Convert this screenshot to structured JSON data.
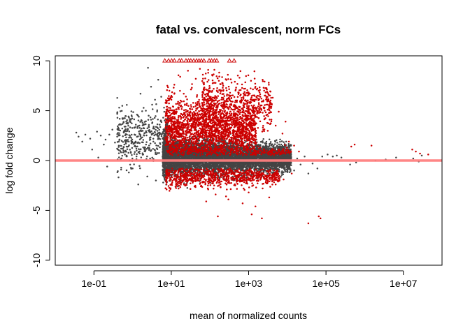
{
  "chart_data": {
    "type": "scatter",
    "title": "fatal vs. convalescent, norm FCs",
    "xlabel": "mean of normalized counts",
    "ylabel": "log fold change",
    "x_scale": "log10",
    "xlim": [
      0.01,
      100000000
    ],
    "ylim": [
      -10.5,
      10.5
    ],
    "x_ticks": [
      0.1,
      10,
      1000,
      100000,
      10000000
    ],
    "x_tick_labels": [
      "1e-01",
      "1e+01",
      "1e+03",
      "1e+05",
      "1e+07"
    ],
    "y_ticks": [
      -10,
      -5,
      0,
      5,
      10
    ],
    "y_tick_labels": [
      "-10",
      "-5",
      "0",
      "5",
      "10"
    ],
    "grid": false,
    "reference_line": {
      "y": 0,
      "color": "#ff8080"
    },
    "colors": {
      "not_significant": "#444444",
      "significant": "#cc0000",
      "out_of_range": "#cc0000"
    },
    "series": [
      {
        "key": "not_significant",
        "points": [
          [
            0.035,
            2.8
          ],
          [
            0.04,
            2.4
          ],
          [
            0.05,
            1.9
          ],
          [
            0.06,
            2.6
          ],
          [
            0.08,
            2.2
          ],
          [
            0.09,
            1.1
          ],
          [
            0.12,
            2.9
          ],
          [
            0.13,
            0.3
          ],
          [
            0.15,
            2.5
          ],
          [
            0.18,
            1.6
          ],
          [
            0.2,
            2.1
          ],
          [
            0.22,
            -0.6
          ],
          [
            0.25,
            2.6
          ],
          [
            0.3,
            3.1
          ],
          [
            0.35,
            1.8
          ],
          [
            0.4,
            2.4
          ],
          [
            0.45,
            5.3
          ],
          [
            0.5,
            3.6
          ],
          [
            0.55,
            1.2
          ],
          [
            0.6,
            2.9
          ],
          [
            0.7,
            0.5
          ],
          [
            0.75,
            3.8
          ],
          [
            0.8,
            -1.2
          ],
          [
            0.85,
            2.5
          ],
          [
            0.9,
            4.1
          ],
          [
            1.0,
            -0.8
          ],
          [
            1.1,
            3.3
          ],
          [
            1.2,
            1.9
          ],
          [
            1.3,
            4.6
          ],
          [
            1.4,
            -2.4
          ],
          [
            1.5,
            2.7
          ],
          [
            1.6,
            6.7
          ],
          [
            1.8,
            3.8
          ],
          [
            2.0,
            1.2
          ],
          [
            2.2,
            5.0
          ],
          [
            2.4,
            -1.6
          ],
          [
            2.5,
            9.3
          ],
          [
            2.6,
            4.5
          ],
          [
            2.8,
            2.9
          ],
          [
            3.0,
            7.4
          ],
          [
            3.2,
            5.6
          ],
          [
            3.5,
            3.4
          ],
          [
            3.8,
            6.1
          ],
          [
            4.0,
            -2.0
          ],
          [
            4.3,
            4.9
          ],
          [
            4.6,
            8.1
          ],
          [
            5.0,
            3.6
          ],
          [
            5.5,
            6.4
          ],
          [
            6.0,
            1.8
          ],
          [
            6.5,
            5.3
          ],
          [
            7.0,
            -1.5
          ],
          [
            8.0,
            4.2
          ],
          [
            9.0,
            2.7
          ],
          [
            10.0,
            -0.9
          ],
          [
            12.0,
            1.3
          ],
          [
            14.0,
            0.6
          ],
          [
            1000,
            -0.4
          ],
          [
            2000,
            0.8
          ],
          [
            3000,
            -0.5
          ],
          [
            4500,
            0.3
          ],
          [
            6000,
            -0.9
          ],
          [
            8000,
            0.5
          ],
          [
            9500,
            -0.6
          ],
          [
            12000,
            0.6
          ],
          [
            15000,
            -1.0
          ],
          [
            18000,
            0.2
          ],
          [
            22000,
            -0.4
          ],
          [
            28000,
            0.4
          ],
          [
            35000,
            -1.3
          ],
          [
            45000,
            -0.3
          ],
          [
            60000,
            -0.8
          ],
          [
            80000,
            0.4
          ],
          [
            110000,
            0.6
          ],
          [
            150000,
            0.4
          ],
          [
            190000,
            0.5
          ],
          [
            250000,
            0.3
          ],
          [
            420000,
            -0.4
          ],
          [
            600000,
            -0.2
          ],
          [
            1900000,
            0.0
          ],
          [
            3500000,
            0.1
          ],
          [
            6500000,
            0.3
          ],
          [
            18000000,
            0.2
          ],
          [
            25000000,
            -0.1
          ],
          [
            30000000,
            0.5
          ]
        ]
      },
      {
        "key": "significant",
        "points": [
          [
            7.0,
            2.3
          ],
          [
            7.8,
            5.4
          ],
          [
            8.5,
            3.3
          ],
          [
            9.5,
            6.2
          ],
          [
            11.0,
            4.4
          ],
          [
            12.0,
            7.6
          ],
          [
            13.5,
            2.9
          ],
          [
            15.0,
            5.9
          ],
          [
            17.0,
            8.4
          ],
          [
            19.0,
            3.8
          ],
          [
            21.0,
            6.7
          ],
          [
            24.0,
            4.3
          ],
          [
            27.0,
            9.0
          ],
          [
            30.0,
            5.2
          ],
          [
            34.0,
            7.3
          ],
          [
            38.0,
            3.4
          ],
          [
            43.0,
            8.2
          ],
          [
            48.0,
            5.7
          ],
          [
            55.0,
            9.2
          ],
          [
            62.0,
            4.7
          ],
          [
            70.0,
            7.8
          ],
          [
            80.0,
            6.1
          ],
          [
            90.0,
            8.8
          ],
          [
            100.0,
            5.0
          ],
          [
            115.0,
            7.0
          ],
          [
            130.0,
            9.1
          ],
          [
            150.0,
            6.3
          ],
          [
            170.0,
            8.0
          ],
          [
            190.0,
            4.6
          ],
          [
            220.0,
            7.5
          ],
          [
            250.0,
            5.4
          ],
          [
            290.0,
            8.6
          ],
          [
            330.0,
            6.8
          ],
          [
            380.0,
            4.1
          ],
          [
            440.0,
            7.9
          ],
          [
            500.0,
            6.0
          ],
          [
            580.0,
            8.3
          ],
          [
            660.0,
            5.2
          ],
          [
            760.0,
            7.2
          ],
          [
            880.0,
            4.4
          ],
          [
            1000.0,
            6.6
          ],
          [
            1150.0,
            8.0
          ],
          [
            1300.0,
            5.4
          ],
          [
            1500.0,
            7.4
          ],
          [
            1700.0,
            4.8
          ],
          [
            2000.0,
            6.4
          ],
          [
            2300.0,
            8.1
          ],
          [
            2600.0,
            5.0
          ],
          [
            3000.0,
            6.9
          ],
          [
            3500.0,
            4.1
          ],
          [
            4200.0,
            6.3
          ],
          [
            5000.0,
            3.5
          ],
          [
            6000.0,
            4.9
          ],
          [
            7500.0,
            2.7
          ],
          [
            9000.0,
            3.9
          ],
          [
            11000.0,
            1.9
          ],
          [
            15000.0,
            1.5
          ],
          [
            20000.0,
            0.9
          ],
          [
            8.0,
            -1.5
          ],
          [
            12.0,
            -1.8
          ],
          [
            18.0,
            -2.2
          ],
          [
            25.0,
            -1.3
          ],
          [
            40.0,
            -2.6
          ],
          [
            60.0,
            -1.7
          ],
          [
            90.0,
            -2.9
          ],
          [
            140.0,
            -3.4
          ],
          [
            200.0,
            -2.1
          ],
          [
            300.0,
            -3.9
          ],
          [
            450.0,
            -2.5
          ],
          [
            700.0,
            -4.3
          ],
          [
            1000.0,
            -3.2
          ],
          [
            1500.0,
            -4.6
          ],
          [
            2300.0,
            -2.8
          ],
          [
            3400.0,
            -3.7
          ],
          [
            5000.0,
            -2.4
          ],
          [
            8000.0,
            -1.9
          ],
          [
            13000.0,
            -1.3
          ],
          [
            80.0,
            -4.1
          ],
          [
            160.0,
            -5.6
          ],
          [
            1200.0,
            -5.4
          ],
          [
            2200.0,
            -5.8
          ],
          [
            260.0,
            -3.6
          ],
          [
            35000.0,
            -6.3
          ],
          [
            65000.0,
            -5.6
          ],
          [
            72000.0,
            -5.8
          ],
          [
            450000.0,
            1.4
          ],
          [
            550000.0,
            1.6
          ],
          [
            1500000.0,
            1.5
          ],
          [
            17000000.0,
            1.1
          ],
          [
            21000000.0,
            0.9
          ],
          [
            27000000.0,
            0.7
          ],
          [
            44000000.0,
            0.6
          ]
        ]
      },
      {
        "key": "out_of_range",
        "marker": "triangle",
        "points": [
          [
            6.8,
            10
          ],
          [
            8.5,
            10
          ],
          [
            10.2,
            10
          ],
          [
            12.0,
            10
          ],
          [
            16.0,
            10
          ],
          [
            18.5,
            10
          ],
          [
            24.0,
            10
          ],
          [
            28.0,
            10
          ],
          [
            32.0,
            10
          ],
          [
            38.0,
            10
          ],
          [
            45.0,
            10
          ],
          [
            52.0,
            10
          ],
          [
            60.0,
            10
          ],
          [
            70.0,
            10
          ],
          [
            95.0,
            10
          ],
          [
            110.0,
            10
          ],
          [
            130.0,
            10
          ],
          [
            150.0,
            10
          ],
          [
            320.0,
            10
          ],
          [
            420.0,
            10
          ]
        ]
      }
    ],
    "dense_bands": [
      {
        "key": "not_significant",
        "n": 6500,
        "log10_x": [
          0.78,
          4.1
        ],
        "y_mean": 0.25,
        "y_sd": 0.95,
        "y_clip": [
          -2.8,
          3.5
        ]
      },
      {
        "key": "significant",
        "n": 2000,
        "log10_x": [
          0.85,
          3.2
        ],
        "y_mean": 3.1,
        "y_sd": 1.6,
        "y_clip": [
          0.9,
          8.8
        ]
      },
      {
        "key": "significant",
        "n": 700,
        "log10_x": [
          1.8,
          3.6
        ],
        "y_mean": 5.5,
        "y_sd": 1.6,
        "y_clip": [
          2.0,
          9.2
        ]
      },
      {
        "key": "significant",
        "n": 800,
        "log10_x": [
          0.85,
          3.8
        ],
        "y_mean": -1.6,
        "y_sd": 0.6,
        "y_clip": [
          -3.8,
          -0.8
        ]
      },
      {
        "key": "significant",
        "n": 350,
        "log10_x": [
          0.9,
          4.1
        ],
        "y_mean": 0.9,
        "y_sd": 0.3,
        "y_clip": [
          0.5,
          1.6
        ]
      },
      {
        "key": "not_significant",
        "n": 400,
        "log10_x": [
          -0.4,
          0.9
        ],
        "y_mean": 2.4,
        "y_sd": 1.6,
        "y_clip": [
          -1.8,
          6.5
        ]
      }
    ]
  }
}
